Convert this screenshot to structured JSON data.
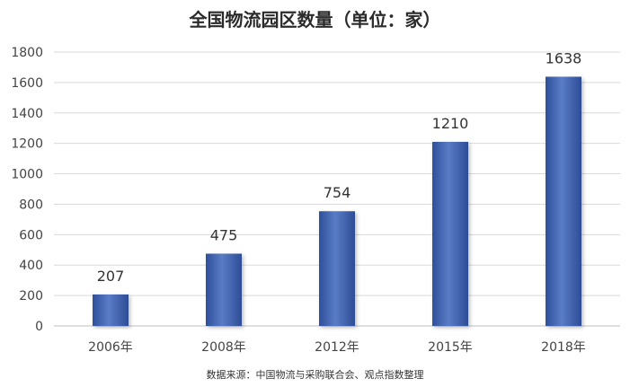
{
  "chart_data": {
    "type": "bar",
    "title": "全国物流园区数量（单位：家）",
    "categories": [
      "2006年",
      "2008年",
      "2012年",
      "2015年",
      "2018年"
    ],
    "values": [
      207,
      475,
      754,
      1210,
      1638
    ],
    "data_labels": [
      "207",
      "475",
      "754",
      "1210",
      "1638"
    ],
    "ylim": [
      0,
      1800
    ],
    "yticks": [
      "0",
      "200",
      "400",
      "600",
      "800",
      "1000",
      "1200",
      "1400",
      "1600",
      "1800"
    ],
    "grid": true,
    "bar_color": "#3d5fad"
  },
  "source": "数据来源：中国物流与采购联合会、观点指数整理"
}
